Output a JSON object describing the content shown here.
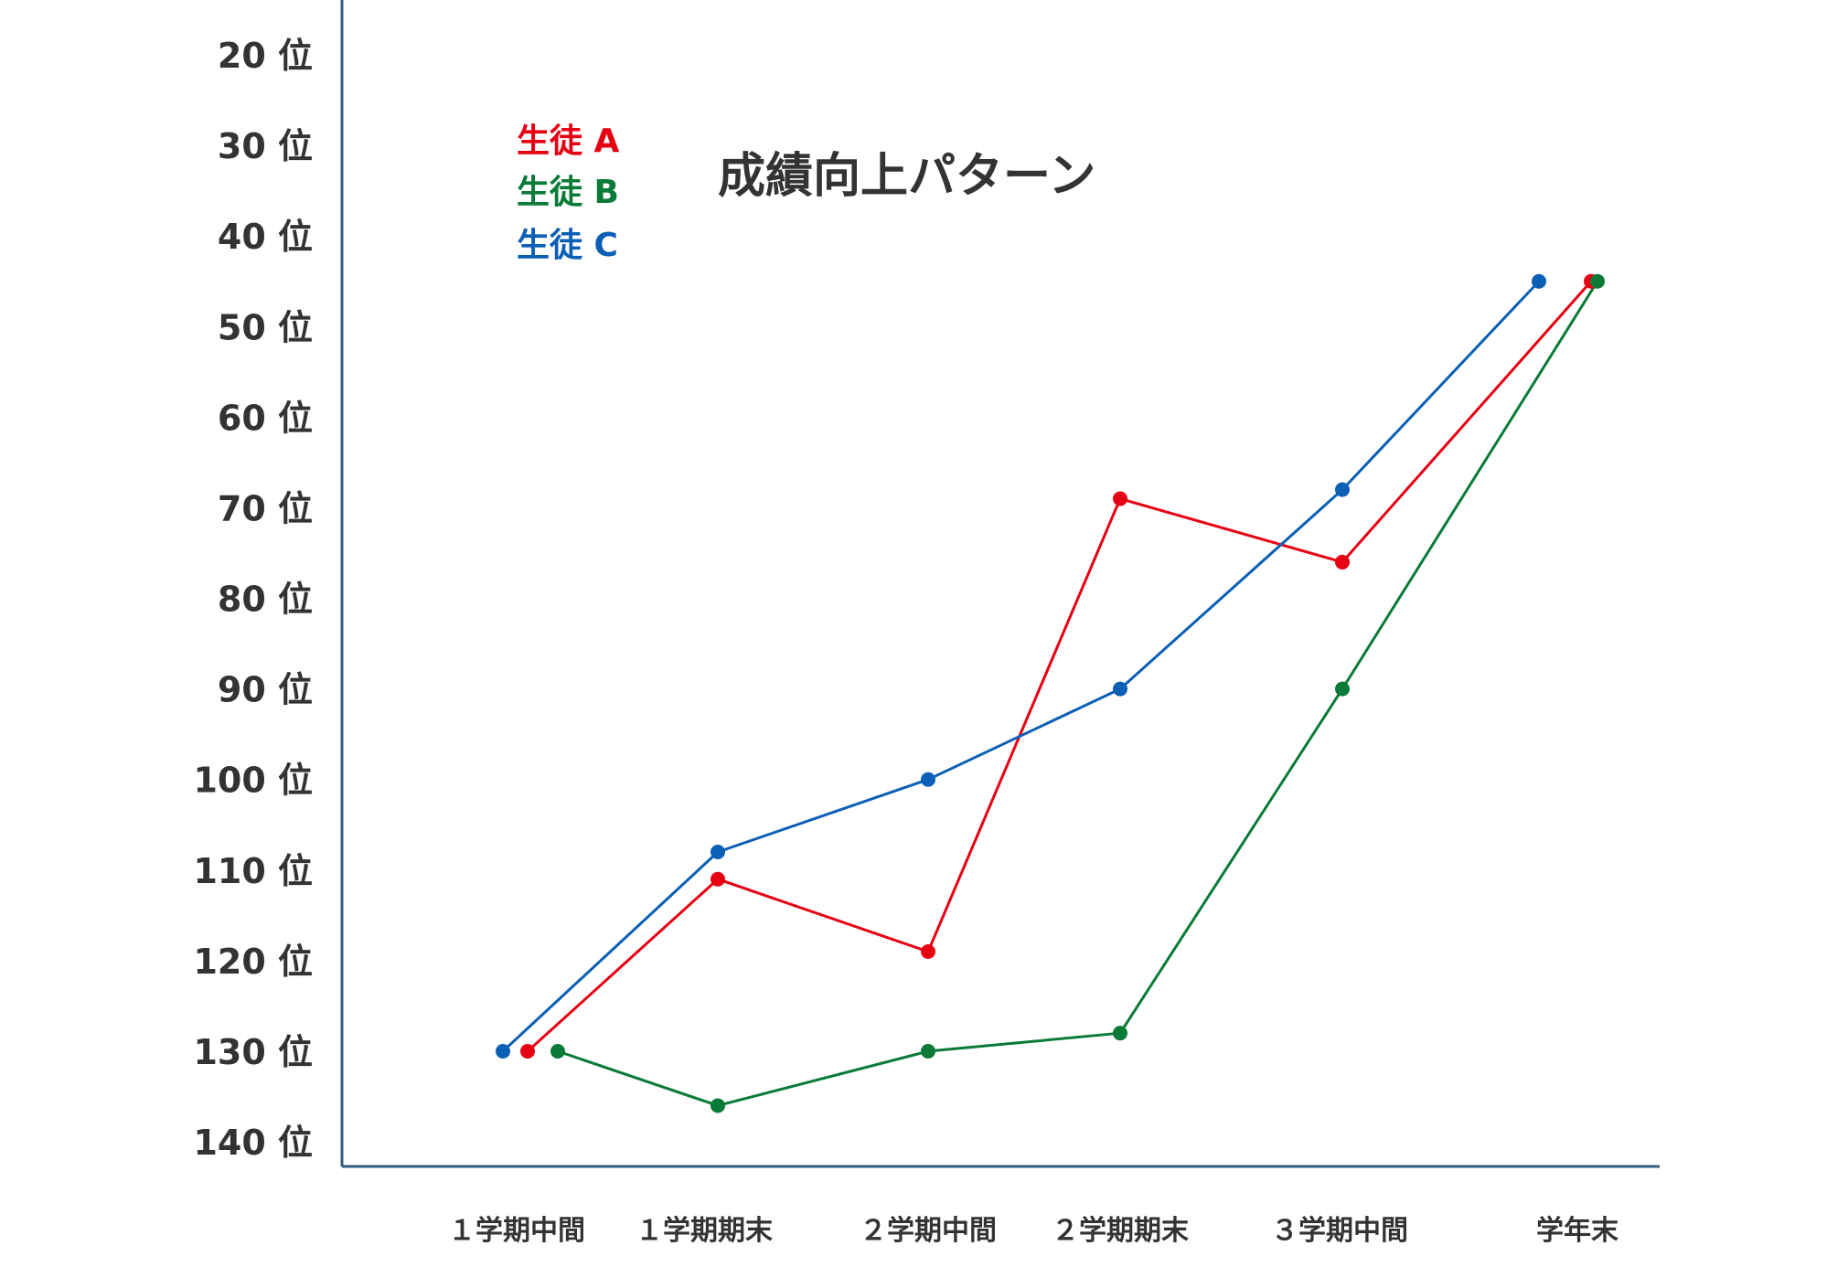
{
  "chart_data": {
    "type": "line",
    "title": "成績向上パターン",
    "xlabel": "",
    "ylabel": "",
    "categories": [
      "１学期中間",
      "１学期期末",
      "２学期中間",
      "２学期期末",
      "３学期中間",
      "学年末"
    ],
    "y_tick_labels": [
      "20 位",
      "30 位",
      "40 位",
      "50 位",
      "60 位",
      "70 位",
      "80 位",
      "90 位",
      "100 位",
      "110 位",
      "120 位",
      "130 位",
      "140 位"
    ],
    "ylim": [
      20,
      140
    ],
    "y_inverted": true,
    "grid": false,
    "legend_position": "top-left",
    "series": [
      {
        "name": "生徒 A",
        "color": "#e60012",
        "values": [
          130,
          111,
          119,
          69,
          76,
          45
        ]
      },
      {
        "name": "生徒 B",
        "color": "#0a7a38",
        "values": [
          130,
          136,
          130,
          128,
          90,
          45
        ]
      },
      {
        "name": "生徒 C",
        "color": "#0b5fb5",
        "values": [
          130,
          108,
          100,
          90,
          68,
          45
        ]
      }
    ]
  }
}
